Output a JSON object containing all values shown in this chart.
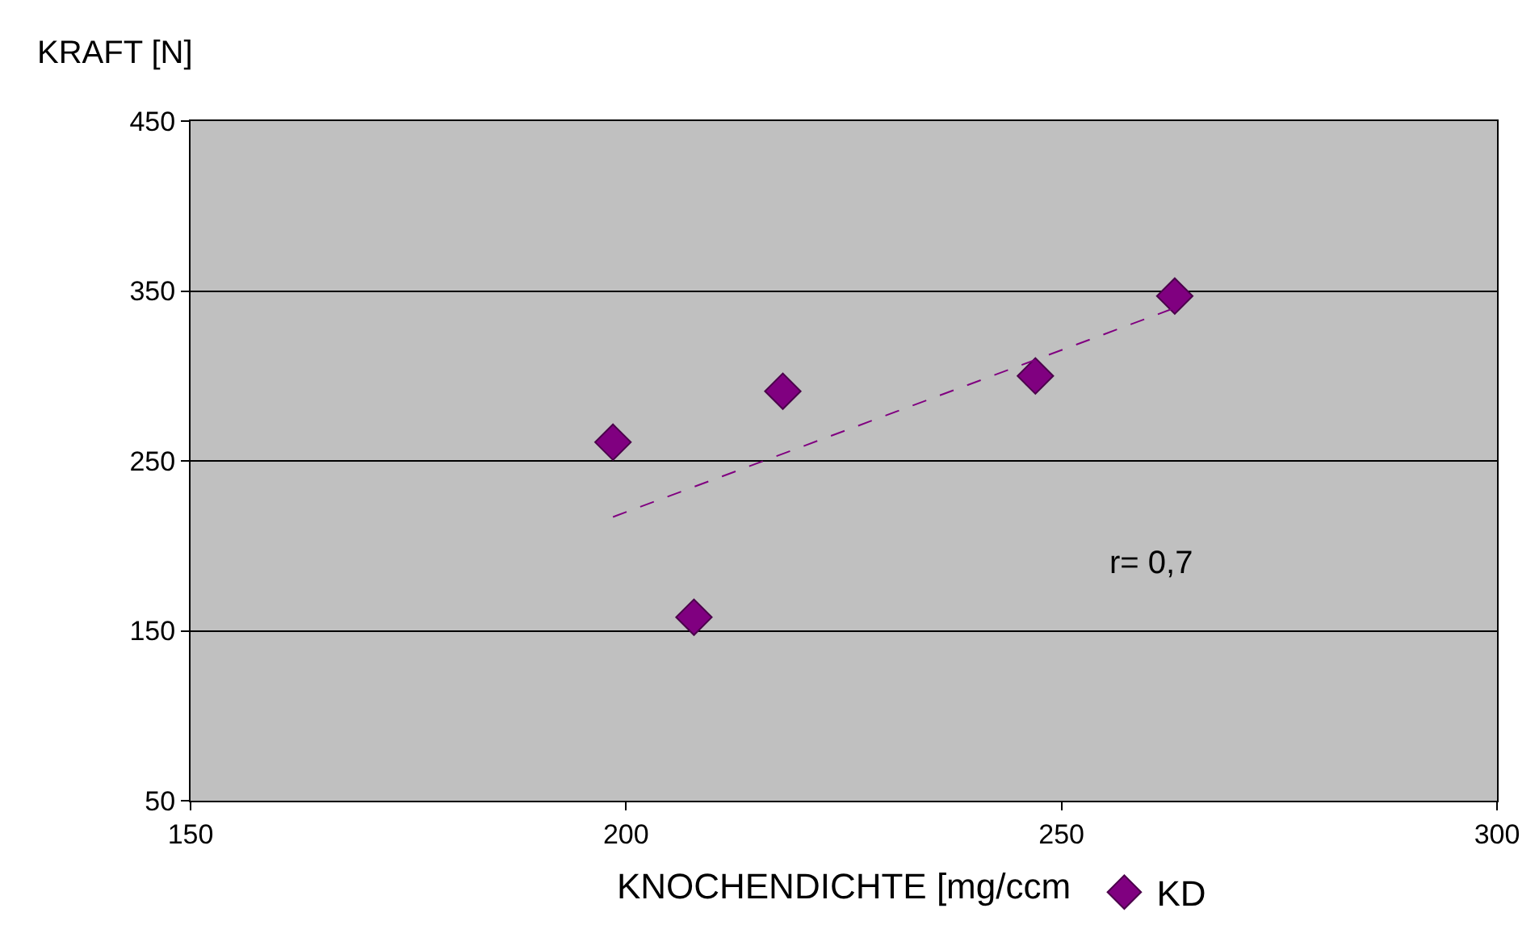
{
  "chart_data": {
    "type": "scatter",
    "ylabel": "KRAFT [N]",
    "xlabel": "KNOCHENDICHTE [mg/ccm",
    "xlim": [
      150,
      300
    ],
    "xticks": [
      150,
      200,
      250,
      300
    ],
    "ylim": [
      50,
      450
    ],
    "yticks": [
      50,
      150,
      250,
      350,
      450
    ],
    "grid": "y",
    "legend": "bottom",
    "annotations": [
      "r= 0,7"
    ],
    "series": [
      {
        "name": "KD",
        "color": "#800080",
        "marker": "diamond",
        "x": [
          198.5,
          207.8,
          218,
          247,
          263
        ],
        "values": [
          261,
          158,
          291,
          300,
          347
        ]
      },
      {
        "type": "line",
        "line_style": "dashed",
        "color": "#800080",
        "x": [
          198.5,
          263
        ],
        "values": [
          217,
          340
        ]
      }
    ]
  }
}
